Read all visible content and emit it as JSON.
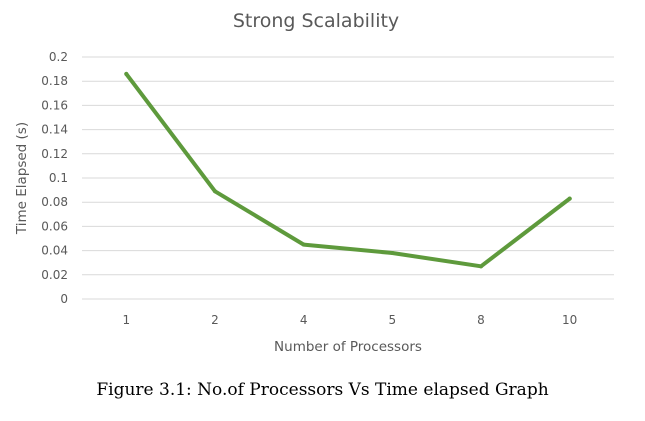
{
  "chart_data": {
    "type": "line",
    "title": "Strong Scalability",
    "xlabel": "Number of Processors",
    "ylabel": "Time Elapsed (s)",
    "categories": [
      "1",
      "2",
      "4",
      "5",
      "8",
      "10"
    ],
    "series": [
      {
        "values": [
          0.186,
          0.089,
          0.045,
          0.038,
          0.027,
          0.083
        ],
        "color": "#5e9a3c"
      }
    ],
    "ylim": [
      0,
      0.2
    ],
    "yticks": [
      "0",
      "0.02",
      "0.04",
      "0.06",
      "0.08",
      "0.1",
      "0.12",
      "0.14",
      "0.16",
      "0.18",
      "0.2"
    ],
    "grid": true,
    "legend": "none"
  },
  "caption": "Figure 3.1: No.of Processors Vs Time elapsed Graph"
}
